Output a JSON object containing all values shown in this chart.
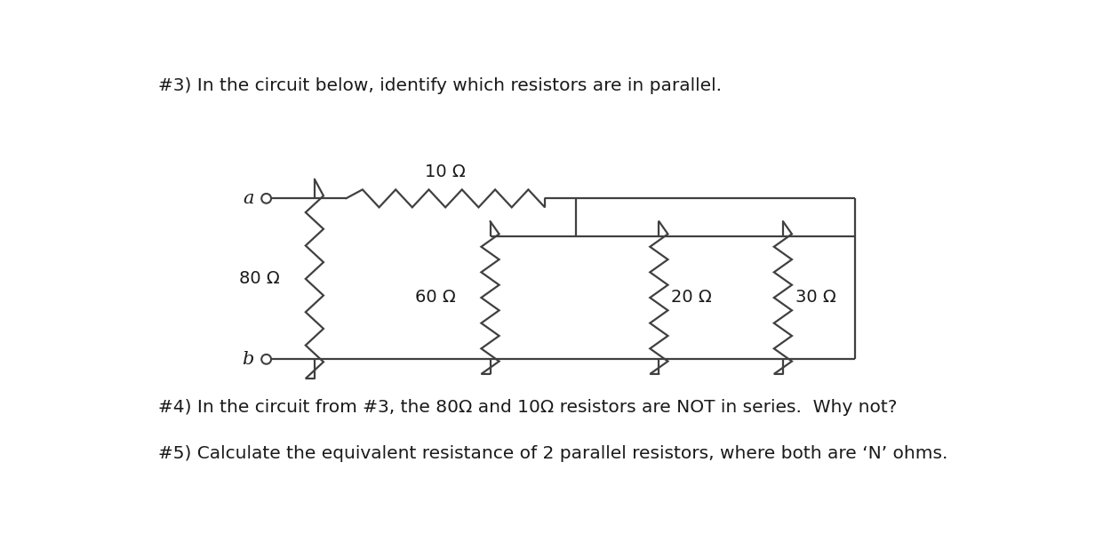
{
  "title3": "#3) In the circuit below, identify which resistors are in parallel.",
  "title4": "#4) In the circuit from #3, the 80Ω and 10Ω resistors are NOT in series.  Why not?",
  "title5": "#5) Calculate the equivalent resistance of 2 parallel resistors, where both are ‘N’ ohms.",
  "bg_color": "#ffffff",
  "line_color": "#404040",
  "text_color": "#1a1a1a"
}
